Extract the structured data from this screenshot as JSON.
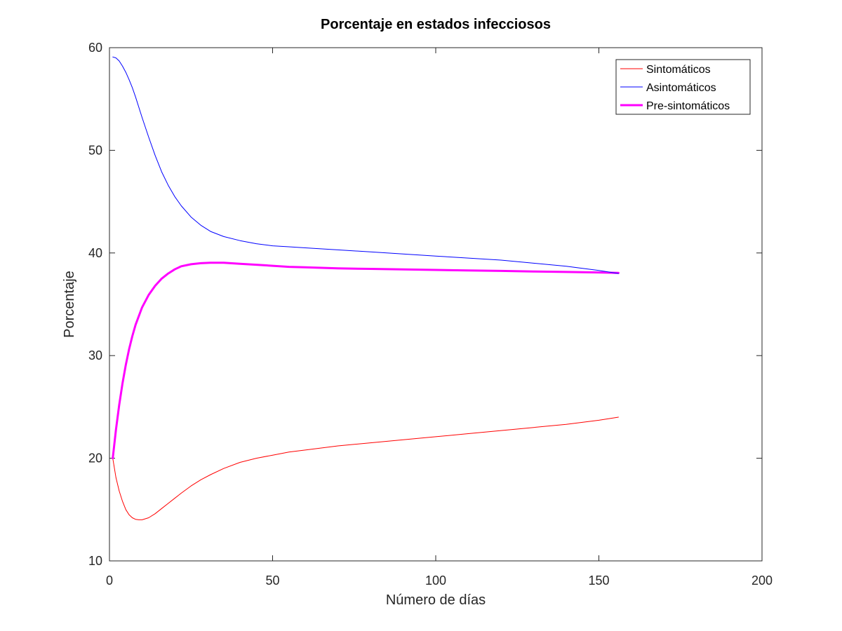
{
  "chart_data": {
    "type": "line",
    "title": "Porcentaje en estados infecciosos",
    "xlabel": "Número de días",
    "ylabel": "Porcentaje",
    "xlim": [
      0,
      200
    ],
    "ylim": [
      10,
      60
    ],
    "xticks": [
      0,
      50,
      100,
      150,
      200
    ],
    "yticks": [
      10,
      20,
      30,
      40,
      50,
      60
    ],
    "xtick_labels": [
      "0",
      "50",
      "100",
      "150",
      "200"
    ],
    "ytick_labels": [
      "10",
      "20",
      "30",
      "40",
      "50",
      "60"
    ],
    "grid": false,
    "legend_position": "top-right",
    "series": [
      {
        "name": "Sintomáticos",
        "color": "#ff0000",
        "x": [
          1,
          2,
          3,
          4,
          5,
          6,
          7,
          8,
          9,
          10,
          12,
          14,
          16,
          18,
          20,
          22,
          25,
          28,
          31,
          35,
          40,
          45,
          50,
          55,
          60,
          70,
          80,
          90,
          100,
          110,
          120,
          130,
          140,
          150,
          156
        ],
        "y": [
          20.0,
          18.1,
          16.8,
          15.8,
          15.0,
          14.5,
          14.2,
          14.05,
          14.0,
          14.0,
          14.2,
          14.6,
          15.1,
          15.6,
          16.1,
          16.6,
          17.3,
          17.9,
          18.4,
          19.0,
          19.6,
          20.0,
          20.3,
          20.6,
          20.8,
          21.2,
          21.5,
          21.8,
          22.1,
          22.4,
          22.7,
          23.0,
          23.3,
          23.7,
          24.0
        ]
      },
      {
        "name": "Asintomáticos",
        "color": "#0000ff",
        "x": [
          1,
          2,
          3,
          4,
          5,
          6,
          7,
          8,
          10,
          12,
          14,
          16,
          18,
          20,
          22,
          25,
          28,
          31,
          35,
          40,
          45,
          50,
          55,
          60,
          70,
          80,
          90,
          100,
          110,
          120,
          130,
          140,
          150,
          156
        ],
        "y": [
          59.1,
          59.0,
          58.7,
          58.2,
          57.6,
          56.9,
          56.1,
          55.2,
          53.2,
          51.3,
          49.5,
          47.9,
          46.6,
          45.5,
          44.6,
          43.5,
          42.7,
          42.1,
          41.6,
          41.2,
          40.9,
          40.7,
          40.6,
          40.5,
          40.3,
          40.1,
          39.9,
          39.7,
          39.5,
          39.3,
          39.0,
          38.7,
          38.3,
          38.0
        ]
      },
      {
        "name": "Pre-sintomáticos",
        "color": "#ff00ff",
        "x": [
          1,
          2,
          3,
          4,
          5,
          6,
          7,
          8,
          10,
          12,
          14,
          16,
          18,
          20,
          22,
          25,
          28,
          31,
          35,
          40,
          45,
          50,
          55,
          60,
          70,
          80,
          90,
          100,
          110,
          120,
          130,
          140,
          150,
          156
        ],
        "y": [
          20.0,
          22.8,
          25.2,
          27.3,
          29.1,
          30.6,
          31.9,
          33.0,
          34.7,
          35.9,
          36.8,
          37.5,
          38.0,
          38.4,
          38.7,
          38.9,
          39.0,
          39.05,
          39.05,
          38.95,
          38.85,
          38.75,
          38.65,
          38.6,
          38.5,
          38.45,
          38.4,
          38.35,
          38.3,
          38.25,
          38.2,
          38.15,
          38.1,
          38.05
        ]
      }
    ]
  }
}
